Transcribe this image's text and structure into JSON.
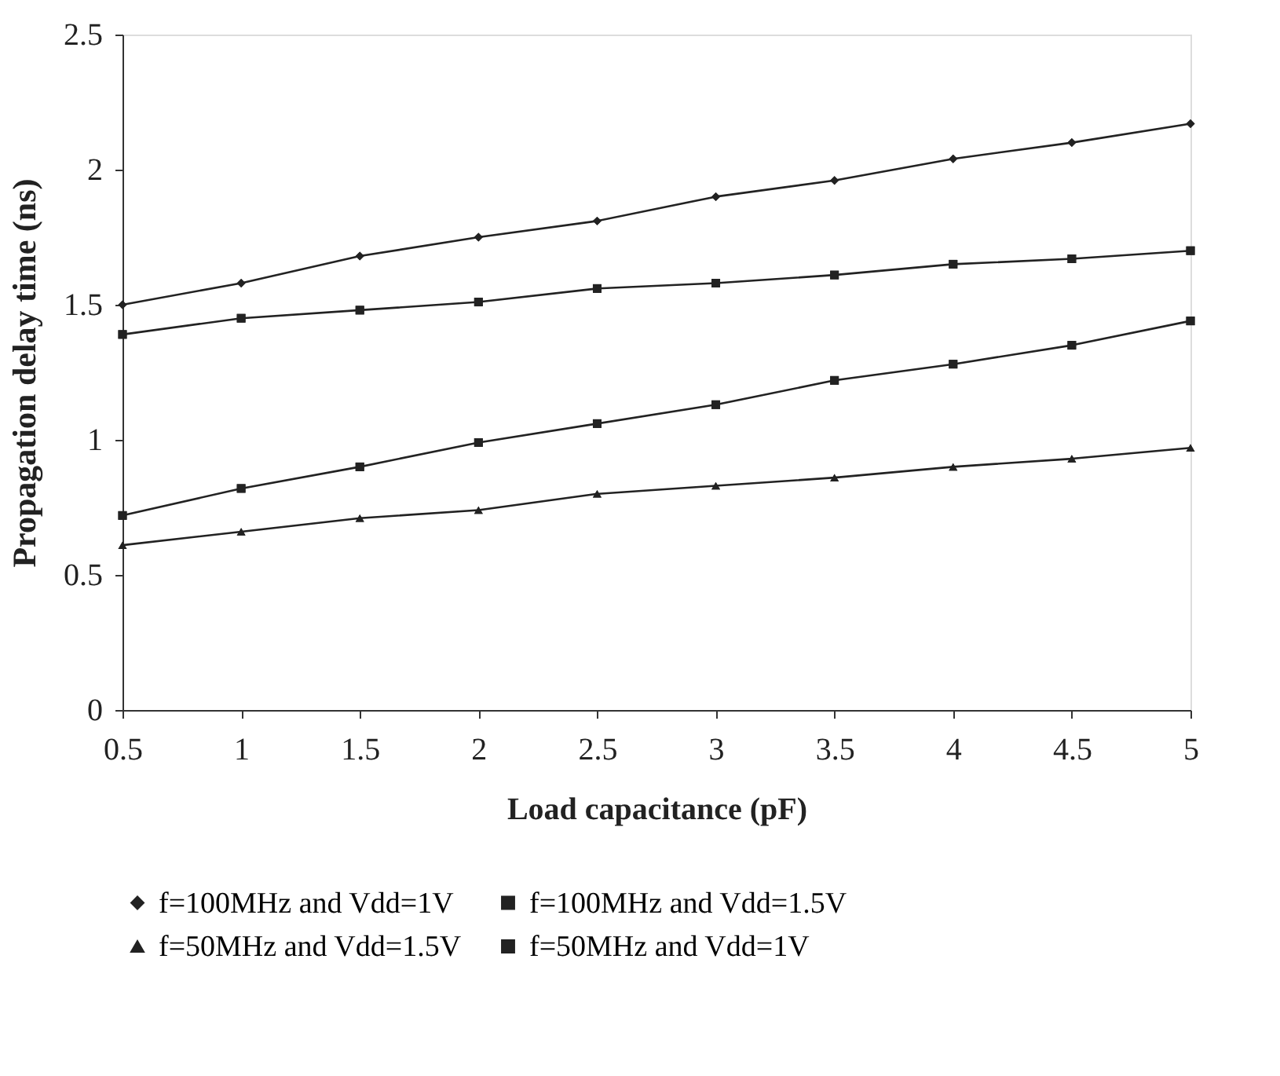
{
  "chart_data": {
    "type": "line",
    "xlabel": "Load capacitance (pF)",
    "ylabel": "Propagation delay time (ns)",
    "x": [
      0.5,
      1,
      1.5,
      2,
      2.5,
      3,
      3.5,
      4,
      4.5,
      5
    ],
    "xlim": [
      0.5,
      5
    ],
    "xticks": [
      0.5,
      1,
      1.5,
      2,
      2.5,
      3,
      3.5,
      4,
      4.5,
      5
    ],
    "ylim": [
      0,
      2.5
    ],
    "yticks": [
      0,
      0.5,
      1,
      1.5,
      2,
      2.5
    ],
    "grid": false,
    "legend": "bottom",
    "line_style": "solid",
    "series": [
      {
        "name": "f=100MHz and Vdd=1V",
        "color": "#222222",
        "marker": "diamond",
        "values": [
          1.5,
          1.58,
          1.68,
          1.75,
          1.81,
          1.9,
          1.96,
          2.04,
          2.1,
          2.17
        ]
      },
      {
        "name": "f=100MHz and Vdd=1.5V",
        "color": "#222222",
        "marker": "square",
        "values": [
          1.39,
          1.45,
          1.48,
          1.51,
          1.56,
          1.58,
          1.61,
          1.65,
          1.67,
          1.7
        ]
      },
      {
        "name": "f=50MHz and Vdd=1.5V",
        "color": "#222222",
        "marker": "triangle",
        "values": [
          0.61,
          0.66,
          0.71,
          0.74,
          0.8,
          0.83,
          0.86,
          0.9,
          0.93,
          0.97
        ]
      },
      {
        "name": "f=50MHz and Vdd=1V",
        "color": "#222222",
        "marker": "square",
        "values": [
          0.72,
          0.82,
          0.9,
          0.99,
          1.06,
          1.13,
          1.22,
          1.28,
          1.35,
          1.44
        ]
      }
    ]
  }
}
